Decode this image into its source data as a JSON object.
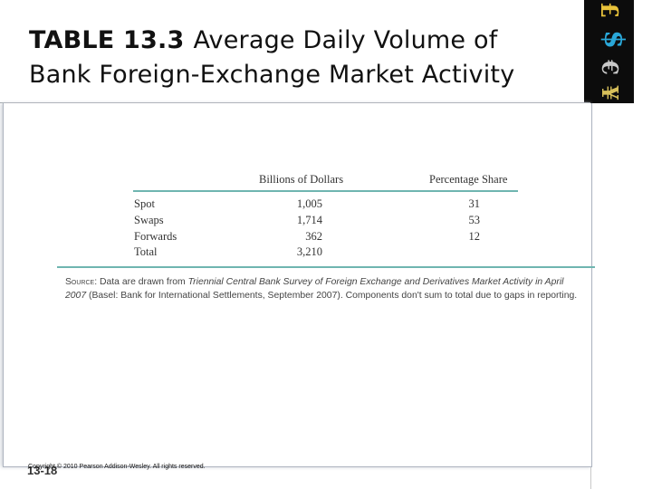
{
  "slide": {
    "title_number": "TABLE 13.3",
    "title_text_line1": "Average Daily Volume of",
    "title_text_line2": "Bank Foreign-Exchange Market Activity",
    "slide_number": "13-18",
    "copyright": "Copyright © 2010 Pearson Addison-Wesley. All rights reserved."
  },
  "corner_graphic": {
    "glyphs": [
      "£",
      "$",
      "€",
      "¥"
    ],
    "colors": [
      "#e8c23a",
      "#2aa7d8",
      "#c8c8c8",
      "#d8c05a"
    ]
  },
  "table": {
    "columns": [
      "",
      "Billions of Dollars",
      "Percentage Share"
    ],
    "rows": [
      [
        "Spot",
        "1,005",
        "31"
      ],
      [
        "Swaps",
        "1,714",
        "53"
      ],
      [
        "Forwards",
        "362",
        "12"
      ],
      [
        "Total",
        "3,210",
        ""
      ]
    ],
    "rule_color": "#6fb5b0"
  },
  "source": {
    "lead": "Source:",
    "text_before_italic": "Data are drawn from",
    "italic_title": "Triennial Central Bank Survey of Foreign Exchange and Derivatives Market Activity in April 2007",
    "text_after_italic": "(Basel: Bank for International Settlements, September 2007). Components don't sum to total due to gaps in reporting."
  }
}
